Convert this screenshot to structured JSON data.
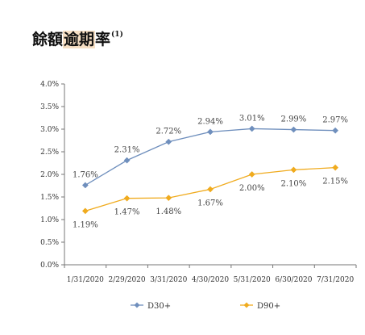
{
  "header": {
    "title_before": "餘額",
    "title_highlight": "逾期",
    "title_after": "率",
    "footnote_marker": "(1)"
  },
  "colors": {
    "series_1": "#6f8fbd",
    "series_2": "#f0ab1e",
    "axis": "#777777",
    "title_highlight_bg": "#f6dfc4"
  },
  "chart_data": {
    "type": "line",
    "title": "",
    "xlabel": "",
    "ylabel": "",
    "categories": [
      "1/31/2020",
      "2/29/2020",
      "3/31/2020",
      "4/30/2020",
      "5/31/2020",
      "6/30/2020",
      "7/31/2020"
    ],
    "ylim": [
      0,
      4.0
    ],
    "yticks": [
      "0.0%",
      "0.5%",
      "1.0%",
      "1.5%",
      "2.0%",
      "2.5%",
      "3.0%",
      "3.5%",
      "4.0%"
    ],
    "ytick_values": [
      0,
      0.5,
      1.0,
      1.5,
      2.0,
      2.5,
      3.0,
      3.5,
      4.0
    ],
    "grid": false,
    "legend_position": "bottom",
    "series": [
      {
        "name": "D30+",
        "marker": "diamond",
        "color": "#6f8fbd",
        "values": [
          1.76,
          2.31,
          2.72,
          2.94,
          3.01,
          2.99,
          2.97
        ],
        "labels": [
          "1.76%",
          "2.31%",
          "2.72%",
          "2.94%",
          "3.01%",
          "2.99%",
          "2.97%"
        ],
        "label_position": "above"
      },
      {
        "name": "D90+",
        "marker": "diamond",
        "color": "#f0ab1e",
        "values": [
          1.19,
          1.47,
          1.48,
          1.67,
          2.0,
          2.1,
          2.15
        ],
        "labels": [
          "1.19%",
          "1.47%",
          "1.48%",
          "1.67%",
          "2.00%",
          "2.10%",
          "2.15%"
        ],
        "label_position": "below"
      }
    ]
  }
}
